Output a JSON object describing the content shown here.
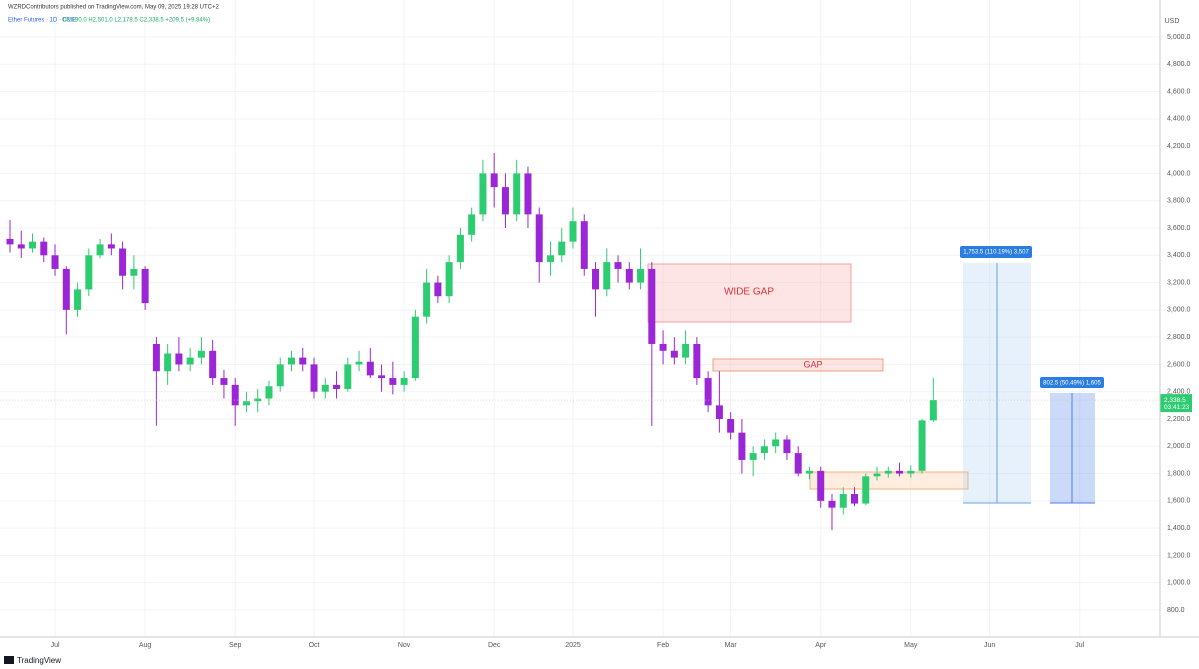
{
  "header": {
    "publisher": "WZRDContributors published on TradingView.com, May 09, 2025 19:28 UTC+2",
    "symbol": "Ether Futures · 1D · CME",
    "ohlc": "O2,190.0 H2,501.0 L2,178.5 C2,338.5 +209.5 (+9.84%)",
    "brand": "TradingView"
  },
  "chart_data": {
    "type": "candlestick",
    "y_axis_label": "USD",
    "up_color": "#2ecc71",
    "down_color": "#9b26d6",
    "categories": [
      null,
      null,
      null,
      null,
      "Jul",
      null,
      null,
      null,
      null,
      null,
      null,
      null,
      "Aug",
      null,
      null,
      null,
      null,
      null,
      null,
      null,
      "Sep",
      null,
      null,
      null,
      null,
      null,
      null,
      "Oct",
      null,
      null,
      null,
      null,
      null,
      null,
      null,
      "Nov",
      null,
      null,
      null,
      null,
      null,
      null,
      null,
      "Dec",
      null,
      null,
      null,
      null,
      null,
      null,
      "2025",
      null,
      null,
      null,
      null,
      null,
      null,
      null,
      "Feb",
      null,
      null,
      null,
      null,
      null,
      "Mar",
      null,
      null,
      null,
      null,
      null,
      null,
      null,
      "Apr",
      null,
      null,
      null,
      null,
      null,
      null,
      null,
      "May",
      null,
      null,
      null,
      null,
      null,
      null,
      "Jun",
      null,
      null,
      null,
      null,
      null,
      null,
      null,
      "Jul",
      null,
      null,
      null,
      null,
      null,
      null
    ],
    "open": [
      3520,
      3480,
      3450,
      3500,
      3400,
      3300,
      3000,
      3150,
      3400,
      3480,
      3450,
      3250,
      3300,
      2750,
      2550,
      2680,
      2600,
      2650,
      2700,
      2500,
      2450,
      2300,
      2330,
      2350,
      2440,
      2600,
      2650,
      2600,
      2400,
      2450,
      2420,
      2600,
      2620,
      2520,
      2500,
      2450,
      2500,
      2950,
      3200,
      3100,
      3350,
      3550,
      3700,
      4000,
      3900,
      3700,
      4000,
      3700,
      3350,
      3400,
      3500,
      3650,
      3300,
      3150,
      3350,
      3300,
      3200,
      3300,
      2750,
      2700,
      2650,
      2750,
      2500,
      2300,
      2200,
      2100,
      1900,
      1950,
      2000,
      2050,
      1950,
      1800,
      1820,
      1600,
      1550,
      1650,
      1580,
      1780,
      1800,
      1820,
      1800,
      1820,
      2190,
      null,
      null,
      null,
      null,
      null,
      null,
      null,
      null,
      null,
      null,
      null,
      null,
      null,
      null,
      null,
      null,
      null,
      null,
      null
    ],
    "high": [
      3660,
      3580,
      3560,
      3530,
      3480,
      3320,
      3200,
      3450,
      3520,
      3560,
      3500,
      3400,
      3320,
      2800,
      2750,
      2800,
      2720,
      2800,
      2780,
      2560,
      2500,
      2400,
      2420,
      2480,
      2650,
      2700,
      2720,
      2650,
      2500,
      2550,
      2650,
      2700,
      2720,
      2600,
      2620,
      2550,
      3000,
      3300,
      3250,
      3400,
      3600,
      3750,
      4100,
      4150,
      4000,
      4100,
      4050,
      3750,
      3500,
      3600,
      3750,
      3700,
      3350,
      3450,
      3400,
      3350,
      3450,
      3350,
      2850,
      2800,
      2850,
      2800,
      2550,
      2550,
      2250,
      2200,
      2000,
      2050,
      2100,
      2080,
      2000,
      1850,
      1850,
      1650,
      1700,
      1700,
      1800,
      1850,
      1850,
      1880,
      1860,
      2200,
      2501,
      null,
      null,
      null,
      null,
      null,
      null,
      null,
      null,
      null,
      null,
      null,
      null,
      null,
      null,
      null,
      null,
      null,
      null,
      null
    ],
    "low": [
      3420,
      3380,
      3420,
      3350,
      3250,
      2820,
      2950,
      3100,
      3380,
      3400,
      3150,
      3150,
      3000,
      2150,
      2450,
      2550,
      2550,
      2600,
      2450,
      2350,
      2150,
      2250,
      2250,
      2300,
      2400,
      2550,
      2550,
      2350,
      2350,
      2350,
      2400,
      2550,
      2500,
      2400,
      2380,
      2400,
      2480,
      2900,
      3050,
      3050,
      3300,
      3500,
      3650,
      3750,
      3600,
      3650,
      3600,
      3200,
      3250,
      3350,
      3450,
      3250,
      2950,
      3100,
      3200,
      3150,
      3150,
      2150,
      2600,
      2600,
      2600,
      2450,
      2250,
      2100,
      2050,
      1800,
      1780,
      1900,
      1950,
      1900,
      1780,
      1760,
      1550,
      1385,
      1500,
      1560,
      1570,
      1750,
      1770,
      1780,
      1770,
      1800,
      2178.5,
      null,
      null,
      null,
      null,
      null,
      null,
      null,
      null,
      null,
      null,
      null,
      null,
      null,
      null,
      null,
      null,
      null,
      null,
      null
    ],
    "close": [
      3480,
      3450,
      3500,
      3400,
      3300,
      3000,
      3150,
      3400,
      3480,
      3450,
      3250,
      3300,
      3050,
      2550,
      2680,
      2600,
      2650,
      2700,
      2500,
      2450,
      2300,
      2330,
      2350,
      2440,
      2600,
      2650,
      2600,
      2400,
      2450,
      2420,
      2600,
      2620,
      2520,
      2500,
      2450,
      2500,
      2950,
      3200,
      3100,
      3350,
      3550,
      3700,
      4000,
      3900,
      3700,
      4000,
      3700,
      3350,
      3400,
      3500,
      3650,
      3300,
      3150,
      3350,
      3300,
      3200,
      3300,
      2750,
      2700,
      2650,
      2750,
      2500,
      2300,
      2200,
      2100,
      1900,
      1950,
      2000,
      2050,
      1950,
      1800,
      1820,
      1600,
      1550,
      1650,
      1580,
      1780,
      1800,
      1820,
      1800,
      1820,
      2190,
      2338.5,
      null,
      null,
      null,
      null,
      null,
      null,
      null,
      null,
      null,
      null,
      null,
      null,
      null,
      null,
      null,
      null,
      null,
      null,
      null
    ],
    "last_price_label": "2,338.5",
    "countdown": "03:41:23",
    "ylim": [
      602,
      5198
    ],
    "yticks": [
      {
        "value": 800,
        "label": "800.0"
      },
      {
        "value": 1000,
        "label": "1,000.0"
      },
      {
        "value": 1200,
        "label": "1,200.0"
      },
      {
        "value": 1400,
        "label": "1,400.0"
      },
      {
        "value": 1600,
        "label": "1,600.0"
      },
      {
        "value": 1800,
        "label": "1,800.0"
      },
      {
        "value": 2000,
        "label": "2,000.0"
      },
      {
        "value": 2200,
        "label": "2,200.0"
      },
      {
        "value": 2400,
        "label": "2,400.0"
      },
      {
        "value": 2600,
        "label": "2,600.0"
      },
      {
        "value": 2800,
        "label": "2,800.0"
      },
      {
        "value": 3000,
        "label": "3,000.0"
      },
      {
        "value": 3200,
        "label": "3,200.0"
      },
      {
        "value": 3400,
        "label": "3,400.0"
      },
      {
        "value": 3600,
        "label": "3,600.0"
      },
      {
        "value": 3800,
        "label": "3,800.0"
      },
      {
        "value": 4000,
        "label": "4,000.0"
      },
      {
        "value": 4200,
        "label": "4,200.0"
      },
      {
        "value": 4400,
        "label": "4,400.0"
      },
      {
        "value": 4600,
        "label": "4,600.0"
      },
      {
        "value": 4800,
        "label": "4,800.0"
      },
      {
        "value": 5000,
        "label": "5,000.0"
      }
    ],
    "grid": true,
    "annotations": {
      "wide_gap": "WIDE GAP",
      "gap": "GAP",
      "measure_1": "1,753.5 (110.19%) 3,507",
      "measure_2": "802.5 (50.49%) 1,605"
    }
  }
}
